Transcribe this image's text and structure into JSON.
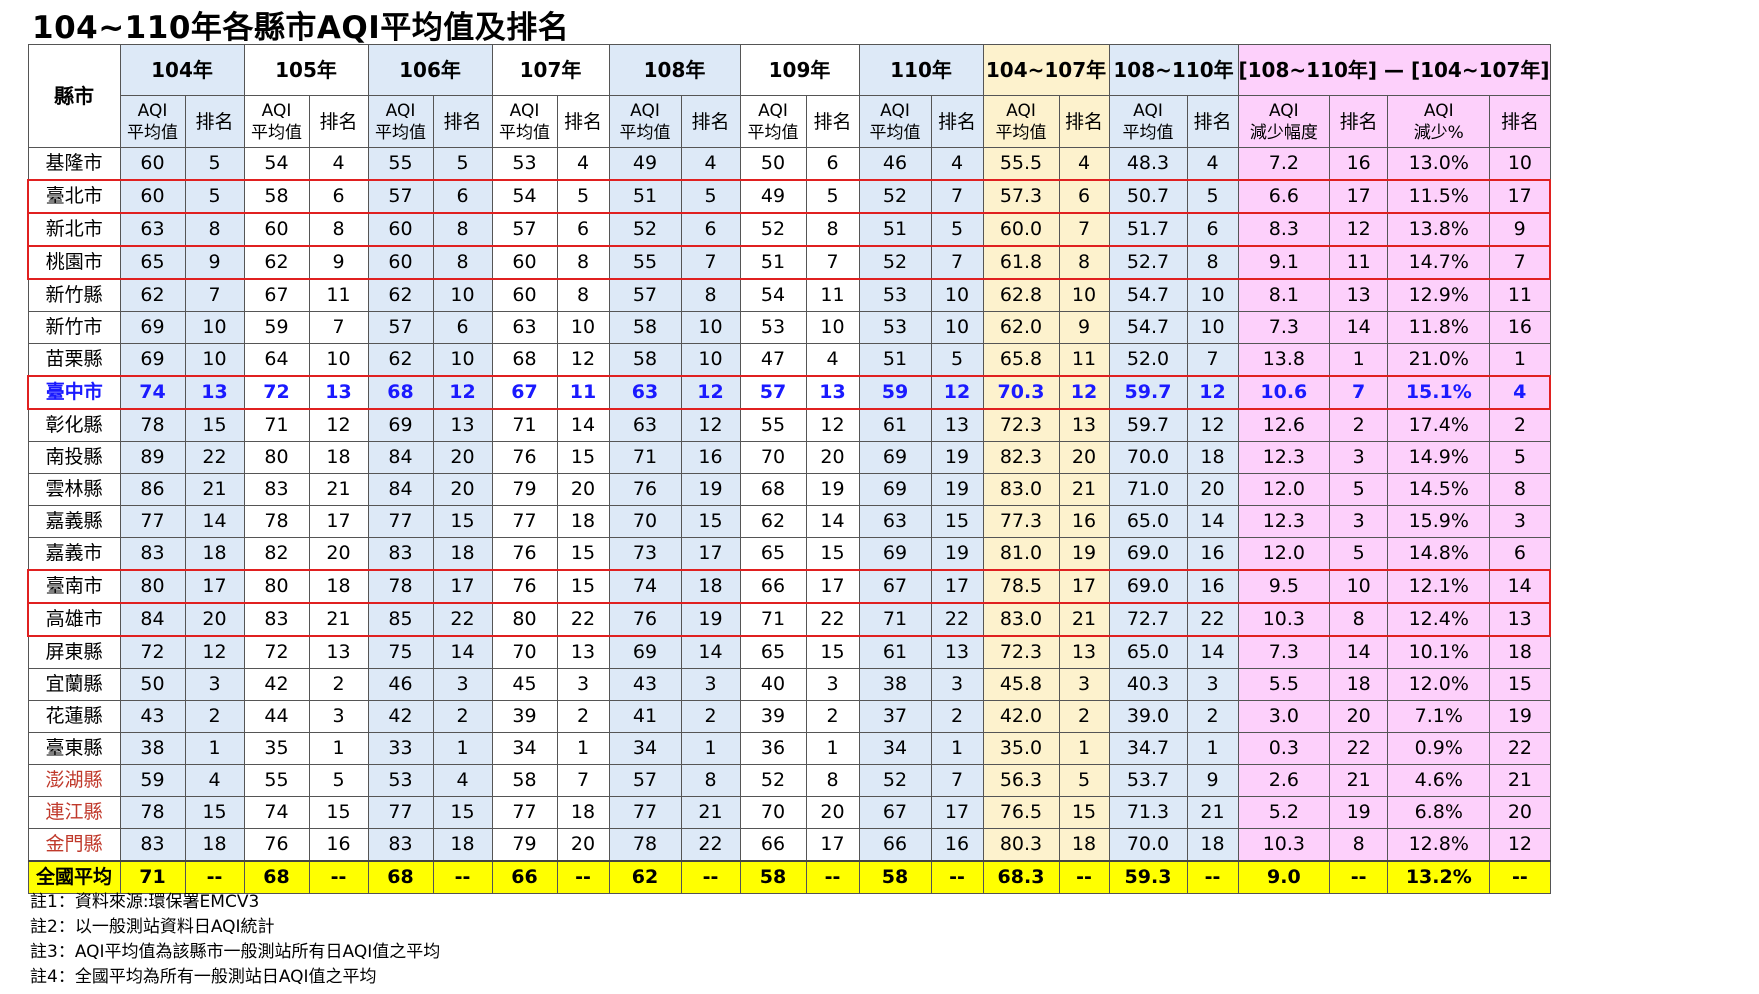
{
  "title": "104~110年各縣市AQI平均值及排名",
  "header": {
    "city": "縣市",
    "groups": [
      "104年",
      "105年",
      "106年",
      "107年",
      "108年",
      "109年",
      "110年",
      "104~107年",
      "108~110年",
      "[108~110年] — [104~107年]"
    ],
    "sub_avg": "AQI\n平均值",
    "sub_rank": "排名",
    "sub_reduce": "AQI\n減少幅度",
    "sub_pct": "AQI\n減少%"
  },
  "rows": [
    {
      "city": "基隆市",
      "vals": [
        "60",
        "5",
        "54",
        "4",
        "55",
        "5",
        "53",
        "4",
        "49",
        "4",
        "50",
        "6",
        "46",
        "4",
        "55.5",
        "4",
        "48.3",
        "4",
        "7.2",
        "16",
        "13.0%",
        "10"
      ]
    },
    {
      "city": "臺北市",
      "vals": [
        "60",
        "5",
        "58",
        "6",
        "57",
        "6",
        "54",
        "5",
        "51",
        "5",
        "49",
        "5",
        "52",
        "7",
        "57.3",
        "6",
        "50.7",
        "5",
        "6.6",
        "17",
        "11.5%",
        "17"
      ]
    },
    {
      "city": "新北市",
      "vals": [
        "63",
        "8",
        "60",
        "8",
        "60",
        "8",
        "57",
        "6",
        "52",
        "6",
        "52",
        "8",
        "51",
        "5",
        "60.0",
        "7",
        "51.7",
        "6",
        "8.3",
        "12",
        "13.8%",
        "9"
      ]
    },
    {
      "city": "桃園市",
      "vals": [
        "65",
        "9",
        "62",
        "9",
        "60",
        "8",
        "60",
        "8",
        "55",
        "7",
        "51",
        "7",
        "52",
        "7",
        "61.8",
        "8",
        "52.7",
        "8",
        "9.1",
        "11",
        "14.7%",
        "7"
      ]
    },
    {
      "city": "新竹縣",
      "vals": [
        "62",
        "7",
        "67",
        "11",
        "62",
        "10",
        "60",
        "8",
        "57",
        "8",
        "54",
        "11",
        "53",
        "10",
        "62.8",
        "10",
        "54.7",
        "10",
        "8.1",
        "13",
        "12.9%",
        "11"
      ]
    },
    {
      "city": "新竹市",
      "vals": [
        "69",
        "10",
        "59",
        "7",
        "57",
        "6",
        "63",
        "10",
        "58",
        "10",
        "53",
        "10",
        "53",
        "10",
        "62.0",
        "9",
        "54.7",
        "10",
        "7.3",
        "14",
        "11.8%",
        "16"
      ]
    },
    {
      "city": "苗栗縣",
      "vals": [
        "69",
        "10",
        "64",
        "10",
        "62",
        "10",
        "68",
        "12",
        "58",
        "10",
        "47",
        "4",
        "51",
        "5",
        "65.8",
        "11",
        "52.0",
        "7",
        "13.8",
        "1",
        "21.0%",
        "1"
      ]
    },
    {
      "city": "臺中市",
      "vals": [
        "74",
        "13",
        "72",
        "13",
        "68",
        "12",
        "67",
        "11",
        "63",
        "12",
        "57",
        "13",
        "59",
        "12",
        "70.3",
        "12",
        "59.7",
        "12",
        "10.6",
        "7",
        "15.1%",
        "4"
      ]
    },
    {
      "city": "彰化縣",
      "vals": [
        "78",
        "15",
        "71",
        "12",
        "69",
        "13",
        "71",
        "14",
        "63",
        "12",
        "55",
        "12",
        "61",
        "13",
        "72.3",
        "13",
        "59.7",
        "12",
        "12.6",
        "2",
        "17.4%",
        "2"
      ]
    },
    {
      "city": "南投縣",
      "vals": [
        "89",
        "22",
        "80",
        "18",
        "84",
        "20",
        "76",
        "15",
        "71",
        "16",
        "70",
        "20",
        "69",
        "19",
        "82.3",
        "20",
        "70.0",
        "18",
        "12.3",
        "3",
        "14.9%",
        "5"
      ]
    },
    {
      "city": "雲林縣",
      "vals": [
        "86",
        "21",
        "83",
        "21",
        "84",
        "20",
        "79",
        "20",
        "76",
        "19",
        "68",
        "19",
        "69",
        "19",
        "83.0",
        "21",
        "71.0",
        "20",
        "12.0",
        "5",
        "14.5%",
        "8"
      ]
    },
    {
      "city": "嘉義縣",
      "vals": [
        "77",
        "14",
        "78",
        "17",
        "77",
        "15",
        "77",
        "18",
        "70",
        "15",
        "62",
        "14",
        "63",
        "15",
        "77.3",
        "16",
        "65.0",
        "14",
        "12.3",
        "3",
        "15.9%",
        "3"
      ]
    },
    {
      "city": "嘉義市",
      "vals": [
        "83",
        "18",
        "82",
        "20",
        "83",
        "18",
        "76",
        "15",
        "73",
        "17",
        "65",
        "15",
        "69",
        "19",
        "81.0",
        "19",
        "69.0",
        "16",
        "12.0",
        "5",
        "14.8%",
        "6"
      ]
    },
    {
      "city": "臺南市",
      "vals": [
        "80",
        "17",
        "80",
        "18",
        "78",
        "17",
        "76",
        "15",
        "74",
        "18",
        "66",
        "17",
        "67",
        "17",
        "78.5",
        "17",
        "69.0",
        "16",
        "9.5",
        "10",
        "12.1%",
        "14"
      ]
    },
    {
      "city": "高雄市",
      "vals": [
        "84",
        "20",
        "83",
        "21",
        "85",
        "22",
        "80",
        "22",
        "76",
        "19",
        "71",
        "22",
        "71",
        "22",
        "83.0",
        "21",
        "72.7",
        "22",
        "10.3",
        "8",
        "12.4%",
        "13"
      ]
    },
    {
      "city": "屏東縣",
      "vals": [
        "72",
        "12",
        "72",
        "13",
        "75",
        "14",
        "70",
        "13",
        "69",
        "14",
        "65",
        "15",
        "61",
        "13",
        "72.3",
        "13",
        "65.0",
        "14",
        "7.3",
        "14",
        "10.1%",
        "18"
      ]
    },
    {
      "city": "宜蘭縣",
      "vals": [
        "50",
        "3",
        "42",
        "2",
        "46",
        "3",
        "45",
        "3",
        "43",
        "3",
        "40",
        "3",
        "38",
        "3",
        "45.8",
        "3",
        "40.3",
        "3",
        "5.5",
        "18",
        "12.0%",
        "15"
      ]
    },
    {
      "city": "花蓮縣",
      "vals": [
        "43",
        "2",
        "44",
        "3",
        "42",
        "2",
        "39",
        "2",
        "41",
        "2",
        "39",
        "2",
        "37",
        "2",
        "42.0",
        "2",
        "39.0",
        "2",
        "3.0",
        "20",
        "7.1%",
        "19"
      ]
    },
    {
      "city": "臺東縣",
      "vals": [
        "38",
        "1",
        "35",
        "1",
        "33",
        "1",
        "34",
        "1",
        "34",
        "1",
        "36",
        "1",
        "34",
        "1",
        "35.0",
        "1",
        "34.7",
        "1",
        "0.3",
        "22",
        "0.9%",
        "22"
      ]
    },
    {
      "city": "澎湖縣",
      "vals": [
        "59",
        "4",
        "55",
        "5",
        "53",
        "4",
        "58",
        "7",
        "57",
        "8",
        "52",
        "8",
        "52",
        "7",
        "56.3",
        "5",
        "53.7",
        "9",
        "2.6",
        "21",
        "4.6%",
        "21"
      ]
    },
    {
      "city": "連江縣",
      "vals": [
        "78",
        "15",
        "74",
        "15",
        "77",
        "15",
        "77",
        "18",
        "77",
        "21",
        "70",
        "20",
        "67",
        "17",
        "76.5",
        "15",
        "71.3",
        "21",
        "5.2",
        "19",
        "6.8%",
        "20"
      ]
    },
    {
      "city": "金門縣",
      "vals": [
        "83",
        "18",
        "76",
        "16",
        "83",
        "18",
        "79",
        "20",
        "78",
        "22",
        "66",
        "17",
        "66",
        "16",
        "80.3",
        "18",
        "70.0",
        "18",
        "10.3",
        "8",
        "12.8%",
        "12"
      ]
    },
    {
      "city": "全國平均",
      "vals": [
        "71",
        "--",
        "68",
        "--",
        "68",
        "--",
        "66",
        "--",
        "62",
        "--",
        "58",
        "--",
        "58",
        "--",
        "68.3",
        "--",
        "59.3",
        "--",
        "9.0",
        "--",
        "13.2%",
        "--"
      ]
    }
  ],
  "row_styles": {
    "boxed": [
      1,
      2,
      3,
      7,
      13,
      14
    ],
    "highlight_blue": [
      7
    ],
    "red_city": [
      19,
      20,
      21
    ],
    "average": [
      22
    ]
  },
  "colors": {
    "blue_col": "#dde9f7",
    "yellow_col": "#fdf2cd",
    "pink_col": "#fdd0fb",
    "average_row": "#ffff00",
    "highlight_text": "#1a1aff",
    "box_border": "#e02020"
  },
  "notes": [
    "註1：資料來源:環保署EMCV3",
    "註2：以一般測站資料日AQI統計",
    "註3：AQI平均值為該縣市一般測站所有日AQI值之平均",
    "註4：全國平均為所有一般測站日AQI值之平均"
  ]
}
